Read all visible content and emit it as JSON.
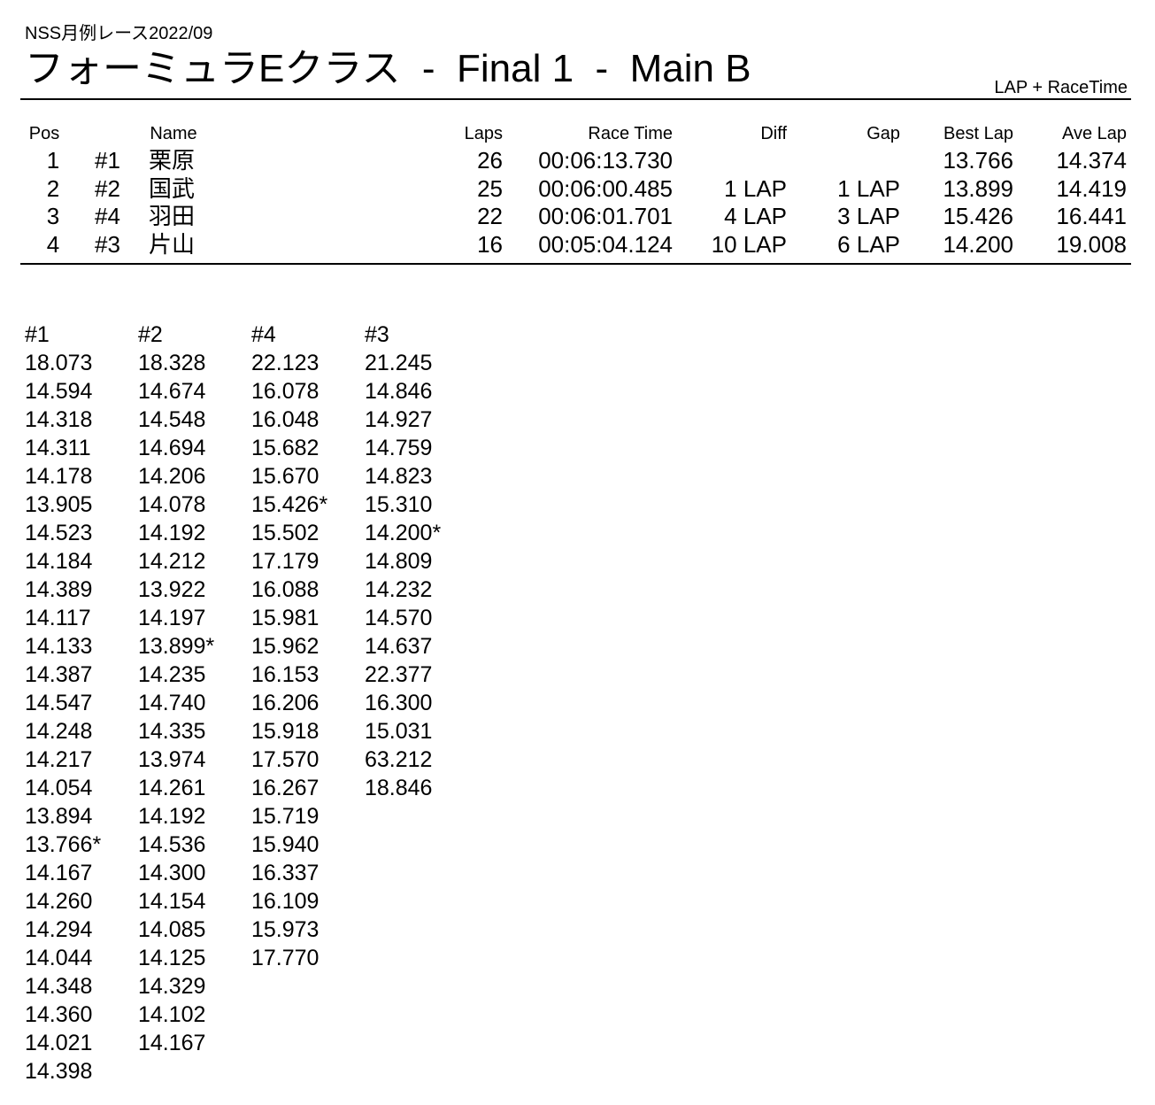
{
  "header": {
    "subtitle": "NSS月例レース2022/09",
    "title": "フォーミュラEクラス  -  Final 1  -  Main B",
    "mode": "LAP + RaceTime"
  },
  "table": {
    "columns": {
      "pos": "Pos",
      "name": "Name",
      "laps": "Laps",
      "race_time": "Race Time",
      "diff": "Diff",
      "gap": "Gap",
      "best_lap": "Best Lap",
      "ave_lap": "Ave Lap"
    },
    "rows": [
      {
        "pos": 1,
        "car": "#1",
        "name": "栗原",
        "laps": 26,
        "race_time": "00:06:13.730",
        "best_lap": "13.766",
        "ave_lap": "14.374"
      },
      {
        "pos": 2,
        "car": "#2",
        "name": "国武",
        "laps": 25,
        "race_time": "00:06:00.485",
        "diff": "1 LAP",
        "gap": "1 LAP",
        "best_lap": "13.899",
        "ave_lap": "14.419"
      },
      {
        "pos": 3,
        "car": "#4",
        "name": "羽田",
        "laps": 22,
        "race_time": "00:06:01.701",
        "diff": "4 LAP",
        "gap": "3 LAP",
        "best_lap": "15.426",
        "ave_lap": "16.441"
      },
      {
        "pos": 4,
        "car": "#3",
        "name": "片山",
        "laps": 16,
        "race_time": "00:05:04.124",
        "diff": "10 LAP",
        "gap": "6 LAP",
        "best_lap": "14.200",
        "ave_lap": "19.008"
      }
    ]
  },
  "lap_times": [
    {
      "car": "#1",
      "times": [
        "18.073",
        "14.594",
        "14.318",
        "14.311",
        "14.178",
        "13.905",
        "14.523",
        "14.184",
        "14.389",
        "14.117",
        "14.133",
        "14.387",
        "14.547",
        "14.248",
        "14.217",
        "14.054",
        "13.894",
        "13.766*",
        "14.167",
        "14.260",
        "14.294",
        "14.044",
        "14.348",
        "14.360",
        "14.021",
        "14.398"
      ]
    },
    {
      "car": "#2",
      "times": [
        "18.328",
        "14.674",
        "14.548",
        "14.694",
        "14.206",
        "14.078",
        "14.192",
        "14.212",
        "13.922",
        "14.197",
        "13.899*",
        "14.235",
        "14.740",
        "14.335",
        "13.974",
        "14.261",
        "14.192",
        "14.536",
        "14.300",
        "14.154",
        "14.085",
        "14.125",
        "14.329",
        "14.102",
        "14.167"
      ]
    },
    {
      "car": "#4",
      "times": [
        "22.123",
        "16.078",
        "16.048",
        "15.682",
        "15.670",
        "15.426*",
        "15.502",
        "17.179",
        "16.088",
        "15.981",
        "15.962",
        "16.153",
        "16.206",
        "15.918",
        "17.570",
        "16.267",
        "15.719",
        "15.940",
        "16.337",
        "16.109",
        "15.973",
        "17.770"
      ]
    },
    {
      "car": "#3",
      "times": [
        "21.245",
        "14.846",
        "14.927",
        "14.759",
        "14.823",
        "15.310",
        "14.200*",
        "14.809",
        "14.232",
        "14.570",
        "14.637",
        "22.377",
        "16.300",
        "15.031",
        "63.212",
        "18.846"
      ]
    }
  ]
}
